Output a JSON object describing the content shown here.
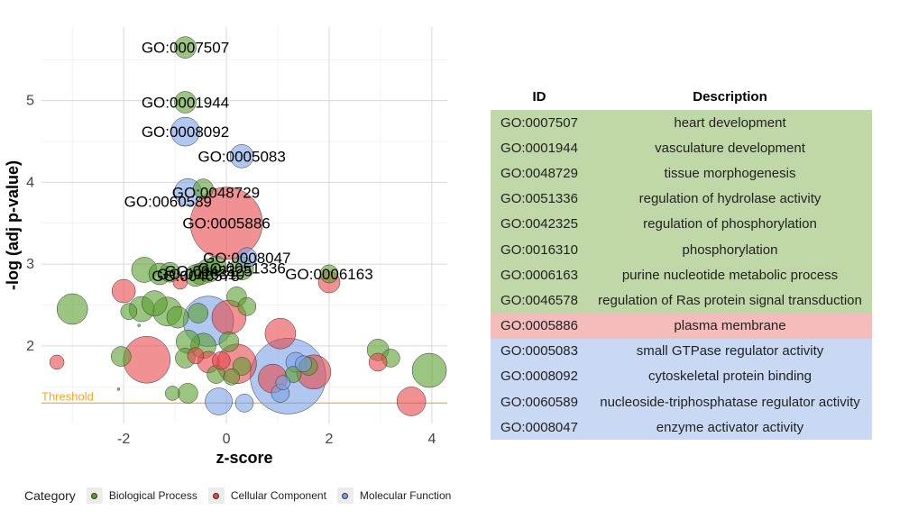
{
  "chart_data": {
    "type": "scatter",
    "xlabel": "z-score",
    "ylabel": "-log (adj p-value)",
    "xlim": [
      -3.6,
      4.3
    ],
    "ylim": [
      1.05,
      5.9
    ],
    "x_ticks": [
      -2,
      0,
      2,
      4
    ],
    "y_ticks": [
      2,
      3,
      4,
      5
    ],
    "grid": true,
    "threshold": {
      "label": "Threshold",
      "value": 1.3,
      "color": "#f5a623"
    },
    "category_colors": {
      "Biological Process": "#5a9e2e",
      "Cellular Component": "#e8484b",
      "Molecular Function": "#7aa2e8"
    },
    "series": [
      {
        "name": "Biological Process",
        "points": [
          {
            "x": -0.8,
            "y": 5.65,
            "size": 12,
            "label": "GO:0007507"
          },
          {
            "x": -0.8,
            "y": 4.98,
            "size": 12,
            "label": "GO:0001944"
          },
          {
            "x": -0.45,
            "y": 3.92,
            "size": 11,
            "label": "GO:0048729"
          },
          {
            "x": 0.3,
            "y": 2.95,
            "size": 13,
            "label": "GO:0051336"
          },
          {
            "x": -0.35,
            "y": 2.92,
            "size": 13,
            "label": "GO:0042325"
          },
          {
            "x": -0.5,
            "y": 2.88,
            "size": 12,
            "label": "GO:0016310"
          },
          {
            "x": 2.0,
            "y": 2.88,
            "size": 10,
            "label": "GO:0006163"
          },
          {
            "x": -0.6,
            "y": 2.86,
            "size": 12,
            "label": "GO:0046578"
          },
          {
            "x": -1.6,
            "y": 2.93,
            "size": 14
          },
          {
            "x": -1.3,
            "y": 2.88,
            "size": 12
          },
          {
            "x": -1.1,
            "y": 2.9,
            "size": 11
          },
          {
            "x": -0.2,
            "y": 2.98,
            "size": 11
          },
          {
            "x": 0.2,
            "y": 2.6,
            "size": 11
          },
          {
            "x": 0.4,
            "y": 2.48,
            "size": 10
          },
          {
            "x": -3.0,
            "y": 2.45,
            "size": 17
          },
          {
            "x": -1.65,
            "y": 2.45,
            "size": 14
          },
          {
            "x": -1.4,
            "y": 2.52,
            "size": 14
          },
          {
            "x": -1.15,
            "y": 2.42,
            "size": 16
          },
          {
            "x": -0.95,
            "y": 2.35,
            "size": 12
          },
          {
            "x": -0.55,
            "y": 2.4,
            "size": 11
          },
          {
            "x": -1.9,
            "y": 2.42,
            "size": 9
          },
          {
            "x": -1.7,
            "y": 2.25,
            "size": 1.5
          },
          {
            "x": -0.75,
            "y": 2.05,
            "size": 13
          },
          {
            "x": -0.45,
            "y": 2.0,
            "size": 14
          },
          {
            "x": 0.05,
            "y": 2.05,
            "size": 11
          },
          {
            "x": -0.8,
            "y": 1.85,
            "size": 11
          },
          {
            "x": -2.05,
            "y": 1.87,
            "size": 11
          },
          {
            "x": 2.95,
            "y": 1.95,
            "size": 12
          },
          {
            "x": 3.2,
            "y": 1.85,
            "size": 10
          },
          {
            "x": 3.95,
            "y": 1.7,
            "size": 19
          },
          {
            "x": -0.75,
            "y": 1.42,
            "size": 11
          },
          {
            "x": -0.2,
            "y": 1.65,
            "size": 10
          },
          {
            "x": 0.3,
            "y": 1.75,
            "size": 10
          },
          {
            "x": 0.1,
            "y": 1.62,
            "size": 9
          },
          {
            "x": -1.05,
            "y": 1.42,
            "size": 8
          },
          {
            "x": -2.1,
            "y": 1.47,
            "size": 1.5
          },
          {
            "x": 1.3,
            "y": 1.65,
            "size": 9
          },
          {
            "x": 1.6,
            "y": 1.75,
            "size": 10
          }
        ]
      },
      {
        "name": "Cellular Component",
        "points": [
          {
            "x": 0.0,
            "y": 3.5,
            "size": 40,
            "label": "GO:0005886"
          },
          {
            "x": -2.0,
            "y": 2.67,
            "size": 13
          },
          {
            "x": -0.9,
            "y": 2.78,
            "size": 8
          },
          {
            "x": 2.0,
            "y": 2.78,
            "size": 12
          },
          {
            "x": 0.05,
            "y": 2.35,
            "size": 19
          },
          {
            "x": 1.05,
            "y": 2.15,
            "size": 17
          },
          {
            "x": -1.55,
            "y": 1.83,
            "size": 26
          },
          {
            "x": -0.6,
            "y": 1.88,
            "size": 9
          },
          {
            "x": -0.35,
            "y": 1.8,
            "size": 12
          },
          {
            "x": -0.1,
            "y": 1.82,
            "size": 10
          },
          {
            "x": 0.2,
            "y": 1.78,
            "size": 22
          },
          {
            "x": -3.3,
            "y": 1.8,
            "size": 8
          },
          {
            "x": 2.95,
            "y": 1.8,
            "size": 10
          },
          {
            "x": 1.7,
            "y": 1.68,
            "size": 19
          },
          {
            "x": 3.6,
            "y": 1.32,
            "size": 16
          },
          {
            "x": 0.9,
            "y": 1.6,
            "size": 16
          }
        ]
      },
      {
        "name": "Molecular Function",
        "points": [
          {
            "x": -0.8,
            "y": 4.62,
            "size": 16,
            "label": "GO:0008092"
          },
          {
            "x": 0.3,
            "y": 4.32,
            "size": 13,
            "label": "GO:0005083"
          },
          {
            "x": -0.75,
            "y": 3.88,
            "size": 15,
            "label": "GO:0060589"
          },
          {
            "x": 0.4,
            "y": 3.08,
            "size": 11,
            "label": "GO:0008047"
          },
          {
            "x": -0.35,
            "y": 2.3,
            "size": 28
          },
          {
            "x": 1.2,
            "y": 1.63,
            "size": 42
          },
          {
            "x": -0.15,
            "y": 1.32,
            "size": 15
          },
          {
            "x": 0.35,
            "y": 1.3,
            "size": 10
          },
          {
            "x": 1.05,
            "y": 1.42,
            "size": 10
          },
          {
            "x": 1.1,
            "y": 1.55,
            "size": 8
          },
          {
            "x": 1.35,
            "y": 1.8,
            "size": 11
          },
          {
            "x": 1.5,
            "y": 1.78,
            "size": 9
          }
        ]
      }
    ],
    "label_adjust": {
      "GO:0007507": [
        0,
        0
      ],
      "GO:0001944": [
        0,
        0
      ],
      "GO:0008092": [
        0,
        0
      ],
      "GO:0005083": [
        0,
        0
      ],
      "GO:0048729": [
        14,
        4
      ],
      "GO:0060589": [
        -22,
        10
      ],
      "GO:0005886": [
        0,
        0
      ],
      "GO:0008047": [
        0,
        0
      ],
      "GO:0051336": [
        0,
        0
      ],
      "GO:0042325": [
        0,
        0
      ],
      "GO:0016310": [
        0,
        0
      ],
      "GO:0046578": [
        0,
        0
      ],
      "GO:0006163": [
        0,
        0
      ]
    }
  },
  "legend": {
    "title": "Category",
    "items": [
      {
        "label": "Biological Process",
        "color": "#5a9e2e"
      },
      {
        "label": "Cellular Component",
        "color": "#e8484b"
      },
      {
        "label": "Molecular Function",
        "color": "#7aa2e8"
      }
    ]
  },
  "table": {
    "headers": {
      "id": "ID",
      "description": "Description"
    },
    "rows": [
      {
        "id": "GO:0007507",
        "description": "heart development",
        "category": "Biological Process"
      },
      {
        "id": "GO:0001944",
        "description": "vasculature development",
        "category": "Biological Process"
      },
      {
        "id": "GO:0048729",
        "description": "tissue morphogenesis",
        "category": "Biological Process"
      },
      {
        "id": "GO:0051336",
        "description": "regulation of hydrolase activity",
        "category": "Biological Process"
      },
      {
        "id": "GO:0042325",
        "description": "regulation of phosphorylation",
        "category": "Biological Process"
      },
      {
        "id": "GO:0016310",
        "description": "phosphorylation",
        "category": "Biological Process"
      },
      {
        "id": "GO:0006163",
        "description": "purine nucleotide metabolic process",
        "category": "Biological Process"
      },
      {
        "id": "GO:0046578",
        "description": "regulation of Ras protein signal transduction",
        "category": "Biological Process"
      },
      {
        "id": "GO:0005886",
        "description": "plasma membrane",
        "category": "Cellular Component"
      },
      {
        "id": "GO:0005083",
        "description": "small GTPase regulator activity",
        "category": "Molecular Function"
      },
      {
        "id": "GO:0008092",
        "description": "cytoskeletal protein binding",
        "category": "Molecular Function"
      },
      {
        "id": "GO:0060589",
        "description": "nucleoside-triphosphatase regulator activity",
        "category": "Molecular Function"
      },
      {
        "id": "GO:0008047",
        "description": "enzyme activator activity",
        "category": "Molecular Function"
      }
    ],
    "row_colors": {
      "Biological Process": "#c0d8a8",
      "Cellular Component": "#f5bcbc",
      "Molecular Function": "#c9d9f4"
    }
  }
}
